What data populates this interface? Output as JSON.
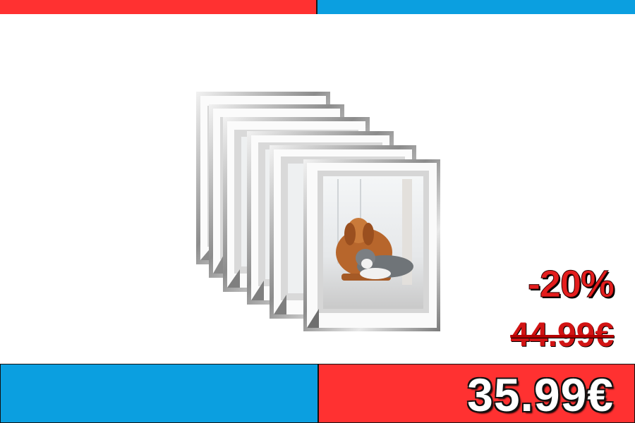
{
  "colors": {
    "accent_red": "#ff3131",
    "accent_blue": "#0b9fe0",
    "frame_silver": "#a9a9a9",
    "mat_grey": "#d9d9d9"
  },
  "product": {
    "image_icon": "photo-frames-set-icon",
    "frame_count": 6
  },
  "pricing": {
    "discount": "-20%",
    "old_price": "44.99€",
    "new_price": "35.99€"
  }
}
